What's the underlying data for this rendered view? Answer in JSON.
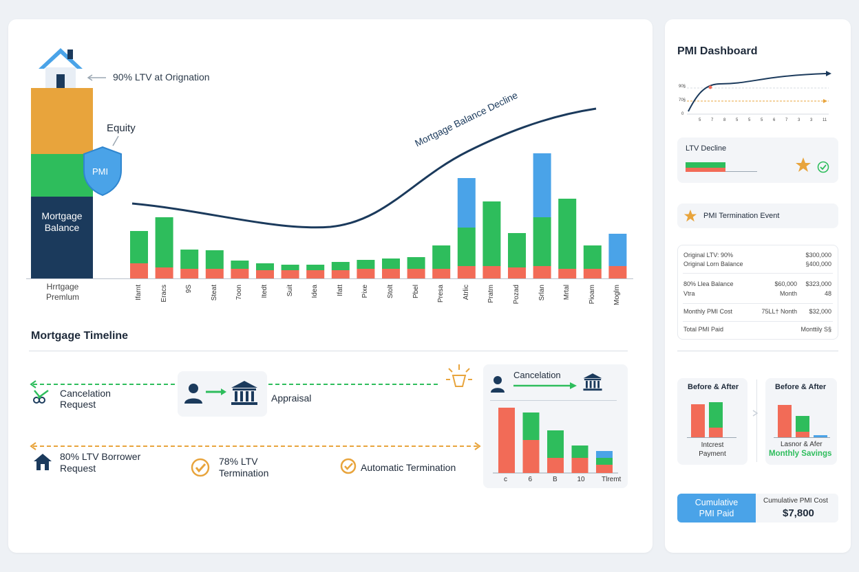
{
  "main": {
    "ltv_origination_label": "90% LTV at Orignation",
    "equity_label": "Equity",
    "pmi_shield_label": "PMI",
    "mortgage_balance_label": "Mortgage Balance",
    "stack_caption": "Hrrtgage Premlum",
    "decline_curve_label": "Mortgage Balance Decline",
    "colors": {
      "navy": "#1b3a5c",
      "orange": "#e8a43c",
      "green": "#2ebd5c",
      "red": "#f26b57",
      "blue": "#4aa3e8"
    }
  },
  "chart_data": {
    "type": "bar",
    "categories": [
      "Ifarnt",
      "Eracs",
      "9S",
      "Steat",
      "7oon",
      "Itedt",
      "Suit",
      "Idea",
      "Ifatt",
      "Pixe",
      "Stolt",
      "Pbel",
      "Presa",
      "Atrlic",
      "Pratm",
      "Pozad",
      "Srlan",
      "Mrtal",
      "Pioam",
      "Moglm"
    ],
    "series": [
      {
        "name": "red",
        "values": [
          22,
          16,
          14,
          14,
          14,
          12,
          12,
          12,
          12,
          14,
          14,
          14,
          14,
          18,
          18,
          16,
          18,
          14,
          14,
          18
        ]
      },
      {
        "name": "green",
        "values": [
          47,
          73,
          28,
          27,
          12,
          10,
          8,
          8,
          12,
          13,
          15,
          17,
          34,
          56,
          94,
          50,
          71,
          102,
          34,
          0
        ]
      },
      {
        "name": "blue",
        "values": [
          0,
          0,
          0,
          0,
          0,
          0,
          0,
          0,
          0,
          0,
          0,
          0,
          0,
          72,
          0,
          0,
          93,
          0,
          0,
          47
        ]
      }
    ]
  },
  "timeline": {
    "title": "Mortgage Timeline",
    "cancel_request": "Cancelation Request",
    "appraisal": "Appraisal",
    "borrower_request": "80% LTV Borrower Request",
    "termination_78": "78% LTV Termination",
    "auto_termination": "Automatic Termination",
    "cancelation_box_title": "Cancelation",
    "mini_chart": {
      "type": "bar",
      "categories": [
        "с",
        "6",
        "B",
        "10",
        "Tlremt"
      ],
      "series": [
        {
          "name": "red",
          "values": [
            95,
            48,
            22,
            22,
            12
          ]
        },
        {
          "name": "green",
          "values": [
            0,
            40,
            40,
            18,
            10
          ]
        },
        {
          "name": "blue",
          "values": [
            0,
            0,
            0,
            0,
            10
          ]
        }
      ]
    }
  },
  "sidebar": {
    "title": "PMI Dashboard",
    "mini_line": {
      "type": "line",
      "y_ticks": [
        "90§",
        "70§",
        "0"
      ],
      "x_ticks": [
        "5",
        "7",
        "8",
        "5",
        "5",
        "5",
        "6",
        "7",
        "3",
        "3",
        "11"
      ]
    },
    "ltv_decline_label": "LTV Decline",
    "termination_event_label": "PMI Termination Event",
    "table": [
      {
        "left": "Original LTV: 90%",
        "mid": "",
        "right": "$300,000"
      },
      {
        "left": "Original Lorn Balance",
        "mid": "",
        "right": "§400,000"
      },
      {
        "left": "80% Llea Balance",
        "mid": "$60,000",
        "right": "$323,000"
      },
      {
        "left": "Vtra",
        "mid": "Month",
        "right": "48"
      },
      {
        "left": "Monthly PMI Cost",
        "mid": "75LL† Nonth",
        "right": "$32,000"
      },
      {
        "left": "Total PMI Paid",
        "mid": "",
        "right": "Monttily S§"
      }
    ],
    "before_after_1": {
      "title": "Before & After",
      "caption": "Intcrest Payment"
    },
    "before_after_2": {
      "title": "Before & After",
      "caption": "Lasnor & Afer",
      "highlight": "Monthly Savings"
    },
    "cumulative_button": "Cumulative PMI Paid",
    "cumulative_cost_label": "Cumulative PMI Cost",
    "cumulative_cost_value": "$7,800"
  }
}
